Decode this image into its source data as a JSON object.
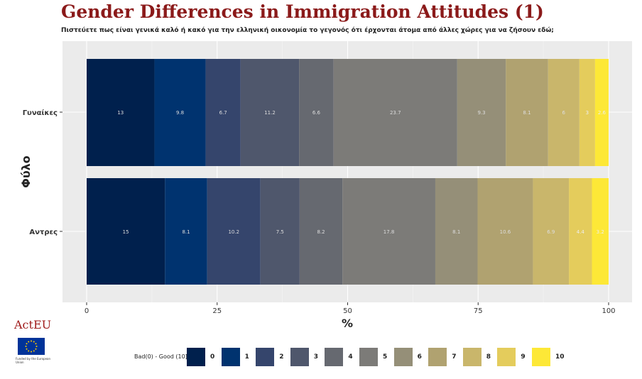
{
  "title": "Gender Differences in Immigration Attitudes (1)",
  "subtitle": "Πιστεύετε πως είναι γενικά καλό ή κακό για την ελληνική οικονομία το γεγονός ότι έρχονται άτομα από άλλες χώρες για να ζήσουν εδώ;",
  "logo": {
    "text": "ActEU",
    "caption": "Funded by the European Union",
    "flag_icon": "eu-flag-icon"
  },
  "legend": {
    "title": "Bad(0) - Good (10]",
    "items": [
      "0",
      "1",
      "2",
      "3",
      "4",
      "5",
      "6",
      "7",
      "8",
      "9",
      "10"
    ]
  },
  "colors": [
    "#00204d",
    "#00336f",
    "#35456c",
    "#4f576c",
    "#666970",
    "#7c7b78",
    "#958f78",
    "#b0a270",
    "#c9b66b",
    "#e4cc5c",
    "#fde837"
  ],
  "chart_data": {
    "type": "bar",
    "orientation": "horizontal",
    "stacked": true,
    "categories": [
      "Γυναίκες",
      "Αντρες"
    ],
    "series": [
      {
        "name": "0",
        "values": [
          13,
          15
        ]
      },
      {
        "name": "1",
        "values": [
          9.8,
          8.1
        ]
      },
      {
        "name": "2",
        "values": [
          6.7,
          10.2
        ]
      },
      {
        "name": "3",
        "values": [
          11.2,
          7.5
        ]
      },
      {
        "name": "4",
        "values": [
          6.6,
          8.2
        ]
      },
      {
        "name": "5",
        "values": [
          23.7,
          17.8
        ]
      },
      {
        "name": "6",
        "values": [
          9.3,
          8.1
        ]
      },
      {
        "name": "7",
        "values": [
          8.1,
          10.6
        ]
      },
      {
        "name": "8",
        "values": [
          6,
          6.9
        ]
      },
      {
        "name": "9",
        "values": [
          3,
          4.4
        ]
      },
      {
        "name": "10",
        "values": [
          2.6,
          3.2
        ]
      }
    ],
    "xlabel": "%",
    "ylabel": "Φύλο",
    "xlim": [
      0,
      100
    ],
    "xticks": [
      0,
      25,
      50,
      75,
      100
    ],
    "grid": true,
    "legend_position": "bottom"
  }
}
